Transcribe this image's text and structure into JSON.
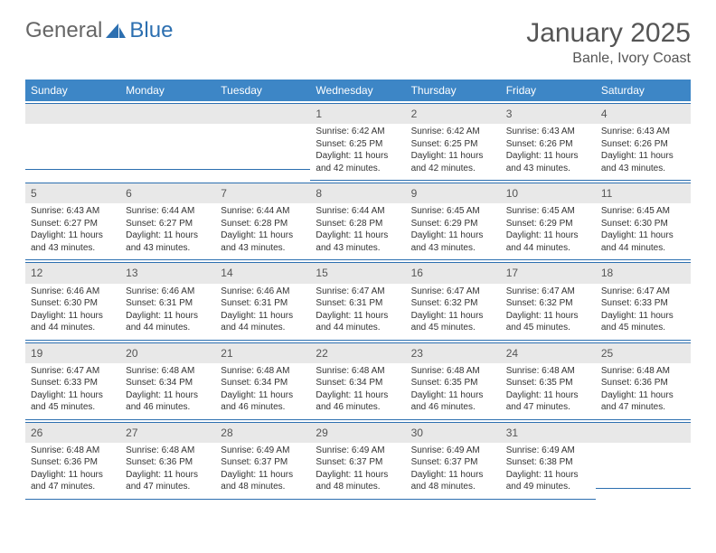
{
  "logo": {
    "text1": "General",
    "text2": "Blue"
  },
  "title": "January 2025",
  "location": "Banle, Ivory Coast",
  "colors": {
    "header_bg": "#3d86c6",
    "header_text": "#ffffff",
    "daynum_bg": "#e8e8e8",
    "daynum_text": "#555555",
    "cell_border": "#2c6fb0",
    "body_text": "#333333",
    "title_text": "#555555",
    "logo_gray": "#666666",
    "logo_blue": "#2c6fb0"
  },
  "weekdays": [
    "Sunday",
    "Monday",
    "Tuesday",
    "Wednesday",
    "Thursday",
    "Friday",
    "Saturday"
  ],
  "weeks": [
    [
      null,
      null,
      null,
      {
        "day": "1",
        "sunrise": "Sunrise: 6:42 AM",
        "sunset": "Sunset: 6:25 PM",
        "daylight": "Daylight: 11 hours and 42 minutes."
      },
      {
        "day": "2",
        "sunrise": "Sunrise: 6:42 AM",
        "sunset": "Sunset: 6:25 PM",
        "daylight": "Daylight: 11 hours and 42 minutes."
      },
      {
        "day": "3",
        "sunrise": "Sunrise: 6:43 AM",
        "sunset": "Sunset: 6:26 PM",
        "daylight": "Daylight: 11 hours and 43 minutes."
      },
      {
        "day": "4",
        "sunrise": "Sunrise: 6:43 AM",
        "sunset": "Sunset: 6:26 PM",
        "daylight": "Daylight: 11 hours and 43 minutes."
      }
    ],
    [
      {
        "day": "5",
        "sunrise": "Sunrise: 6:43 AM",
        "sunset": "Sunset: 6:27 PM",
        "daylight": "Daylight: 11 hours and 43 minutes."
      },
      {
        "day": "6",
        "sunrise": "Sunrise: 6:44 AM",
        "sunset": "Sunset: 6:27 PM",
        "daylight": "Daylight: 11 hours and 43 minutes."
      },
      {
        "day": "7",
        "sunrise": "Sunrise: 6:44 AM",
        "sunset": "Sunset: 6:28 PM",
        "daylight": "Daylight: 11 hours and 43 minutes."
      },
      {
        "day": "8",
        "sunrise": "Sunrise: 6:44 AM",
        "sunset": "Sunset: 6:28 PM",
        "daylight": "Daylight: 11 hours and 43 minutes."
      },
      {
        "day": "9",
        "sunrise": "Sunrise: 6:45 AM",
        "sunset": "Sunset: 6:29 PM",
        "daylight": "Daylight: 11 hours and 43 minutes."
      },
      {
        "day": "10",
        "sunrise": "Sunrise: 6:45 AM",
        "sunset": "Sunset: 6:29 PM",
        "daylight": "Daylight: 11 hours and 44 minutes."
      },
      {
        "day": "11",
        "sunrise": "Sunrise: 6:45 AM",
        "sunset": "Sunset: 6:30 PM",
        "daylight": "Daylight: 11 hours and 44 minutes."
      }
    ],
    [
      {
        "day": "12",
        "sunrise": "Sunrise: 6:46 AM",
        "sunset": "Sunset: 6:30 PM",
        "daylight": "Daylight: 11 hours and 44 minutes."
      },
      {
        "day": "13",
        "sunrise": "Sunrise: 6:46 AM",
        "sunset": "Sunset: 6:31 PM",
        "daylight": "Daylight: 11 hours and 44 minutes."
      },
      {
        "day": "14",
        "sunrise": "Sunrise: 6:46 AM",
        "sunset": "Sunset: 6:31 PM",
        "daylight": "Daylight: 11 hours and 44 minutes."
      },
      {
        "day": "15",
        "sunrise": "Sunrise: 6:47 AM",
        "sunset": "Sunset: 6:31 PM",
        "daylight": "Daylight: 11 hours and 44 minutes."
      },
      {
        "day": "16",
        "sunrise": "Sunrise: 6:47 AM",
        "sunset": "Sunset: 6:32 PM",
        "daylight": "Daylight: 11 hours and 45 minutes."
      },
      {
        "day": "17",
        "sunrise": "Sunrise: 6:47 AM",
        "sunset": "Sunset: 6:32 PM",
        "daylight": "Daylight: 11 hours and 45 minutes."
      },
      {
        "day": "18",
        "sunrise": "Sunrise: 6:47 AM",
        "sunset": "Sunset: 6:33 PM",
        "daylight": "Daylight: 11 hours and 45 minutes."
      }
    ],
    [
      {
        "day": "19",
        "sunrise": "Sunrise: 6:47 AM",
        "sunset": "Sunset: 6:33 PM",
        "daylight": "Daylight: 11 hours and 45 minutes."
      },
      {
        "day": "20",
        "sunrise": "Sunrise: 6:48 AM",
        "sunset": "Sunset: 6:34 PM",
        "daylight": "Daylight: 11 hours and 46 minutes."
      },
      {
        "day": "21",
        "sunrise": "Sunrise: 6:48 AM",
        "sunset": "Sunset: 6:34 PM",
        "daylight": "Daylight: 11 hours and 46 minutes."
      },
      {
        "day": "22",
        "sunrise": "Sunrise: 6:48 AM",
        "sunset": "Sunset: 6:34 PM",
        "daylight": "Daylight: 11 hours and 46 minutes."
      },
      {
        "day": "23",
        "sunrise": "Sunrise: 6:48 AM",
        "sunset": "Sunset: 6:35 PM",
        "daylight": "Daylight: 11 hours and 46 minutes."
      },
      {
        "day": "24",
        "sunrise": "Sunrise: 6:48 AM",
        "sunset": "Sunset: 6:35 PM",
        "daylight": "Daylight: 11 hours and 47 minutes."
      },
      {
        "day": "25",
        "sunrise": "Sunrise: 6:48 AM",
        "sunset": "Sunset: 6:36 PM",
        "daylight": "Daylight: 11 hours and 47 minutes."
      }
    ],
    [
      {
        "day": "26",
        "sunrise": "Sunrise: 6:48 AM",
        "sunset": "Sunset: 6:36 PM",
        "daylight": "Daylight: 11 hours and 47 minutes."
      },
      {
        "day": "27",
        "sunrise": "Sunrise: 6:48 AM",
        "sunset": "Sunset: 6:36 PM",
        "daylight": "Daylight: 11 hours and 47 minutes."
      },
      {
        "day": "28",
        "sunrise": "Sunrise: 6:49 AM",
        "sunset": "Sunset: 6:37 PM",
        "daylight": "Daylight: 11 hours and 48 minutes."
      },
      {
        "day": "29",
        "sunrise": "Sunrise: 6:49 AM",
        "sunset": "Sunset: 6:37 PM",
        "daylight": "Daylight: 11 hours and 48 minutes."
      },
      {
        "day": "30",
        "sunrise": "Sunrise: 6:49 AM",
        "sunset": "Sunset: 6:37 PM",
        "daylight": "Daylight: 11 hours and 48 minutes."
      },
      {
        "day": "31",
        "sunrise": "Sunrise: 6:49 AM",
        "sunset": "Sunset: 6:38 PM",
        "daylight": "Daylight: 11 hours and 49 minutes."
      },
      null
    ]
  ]
}
